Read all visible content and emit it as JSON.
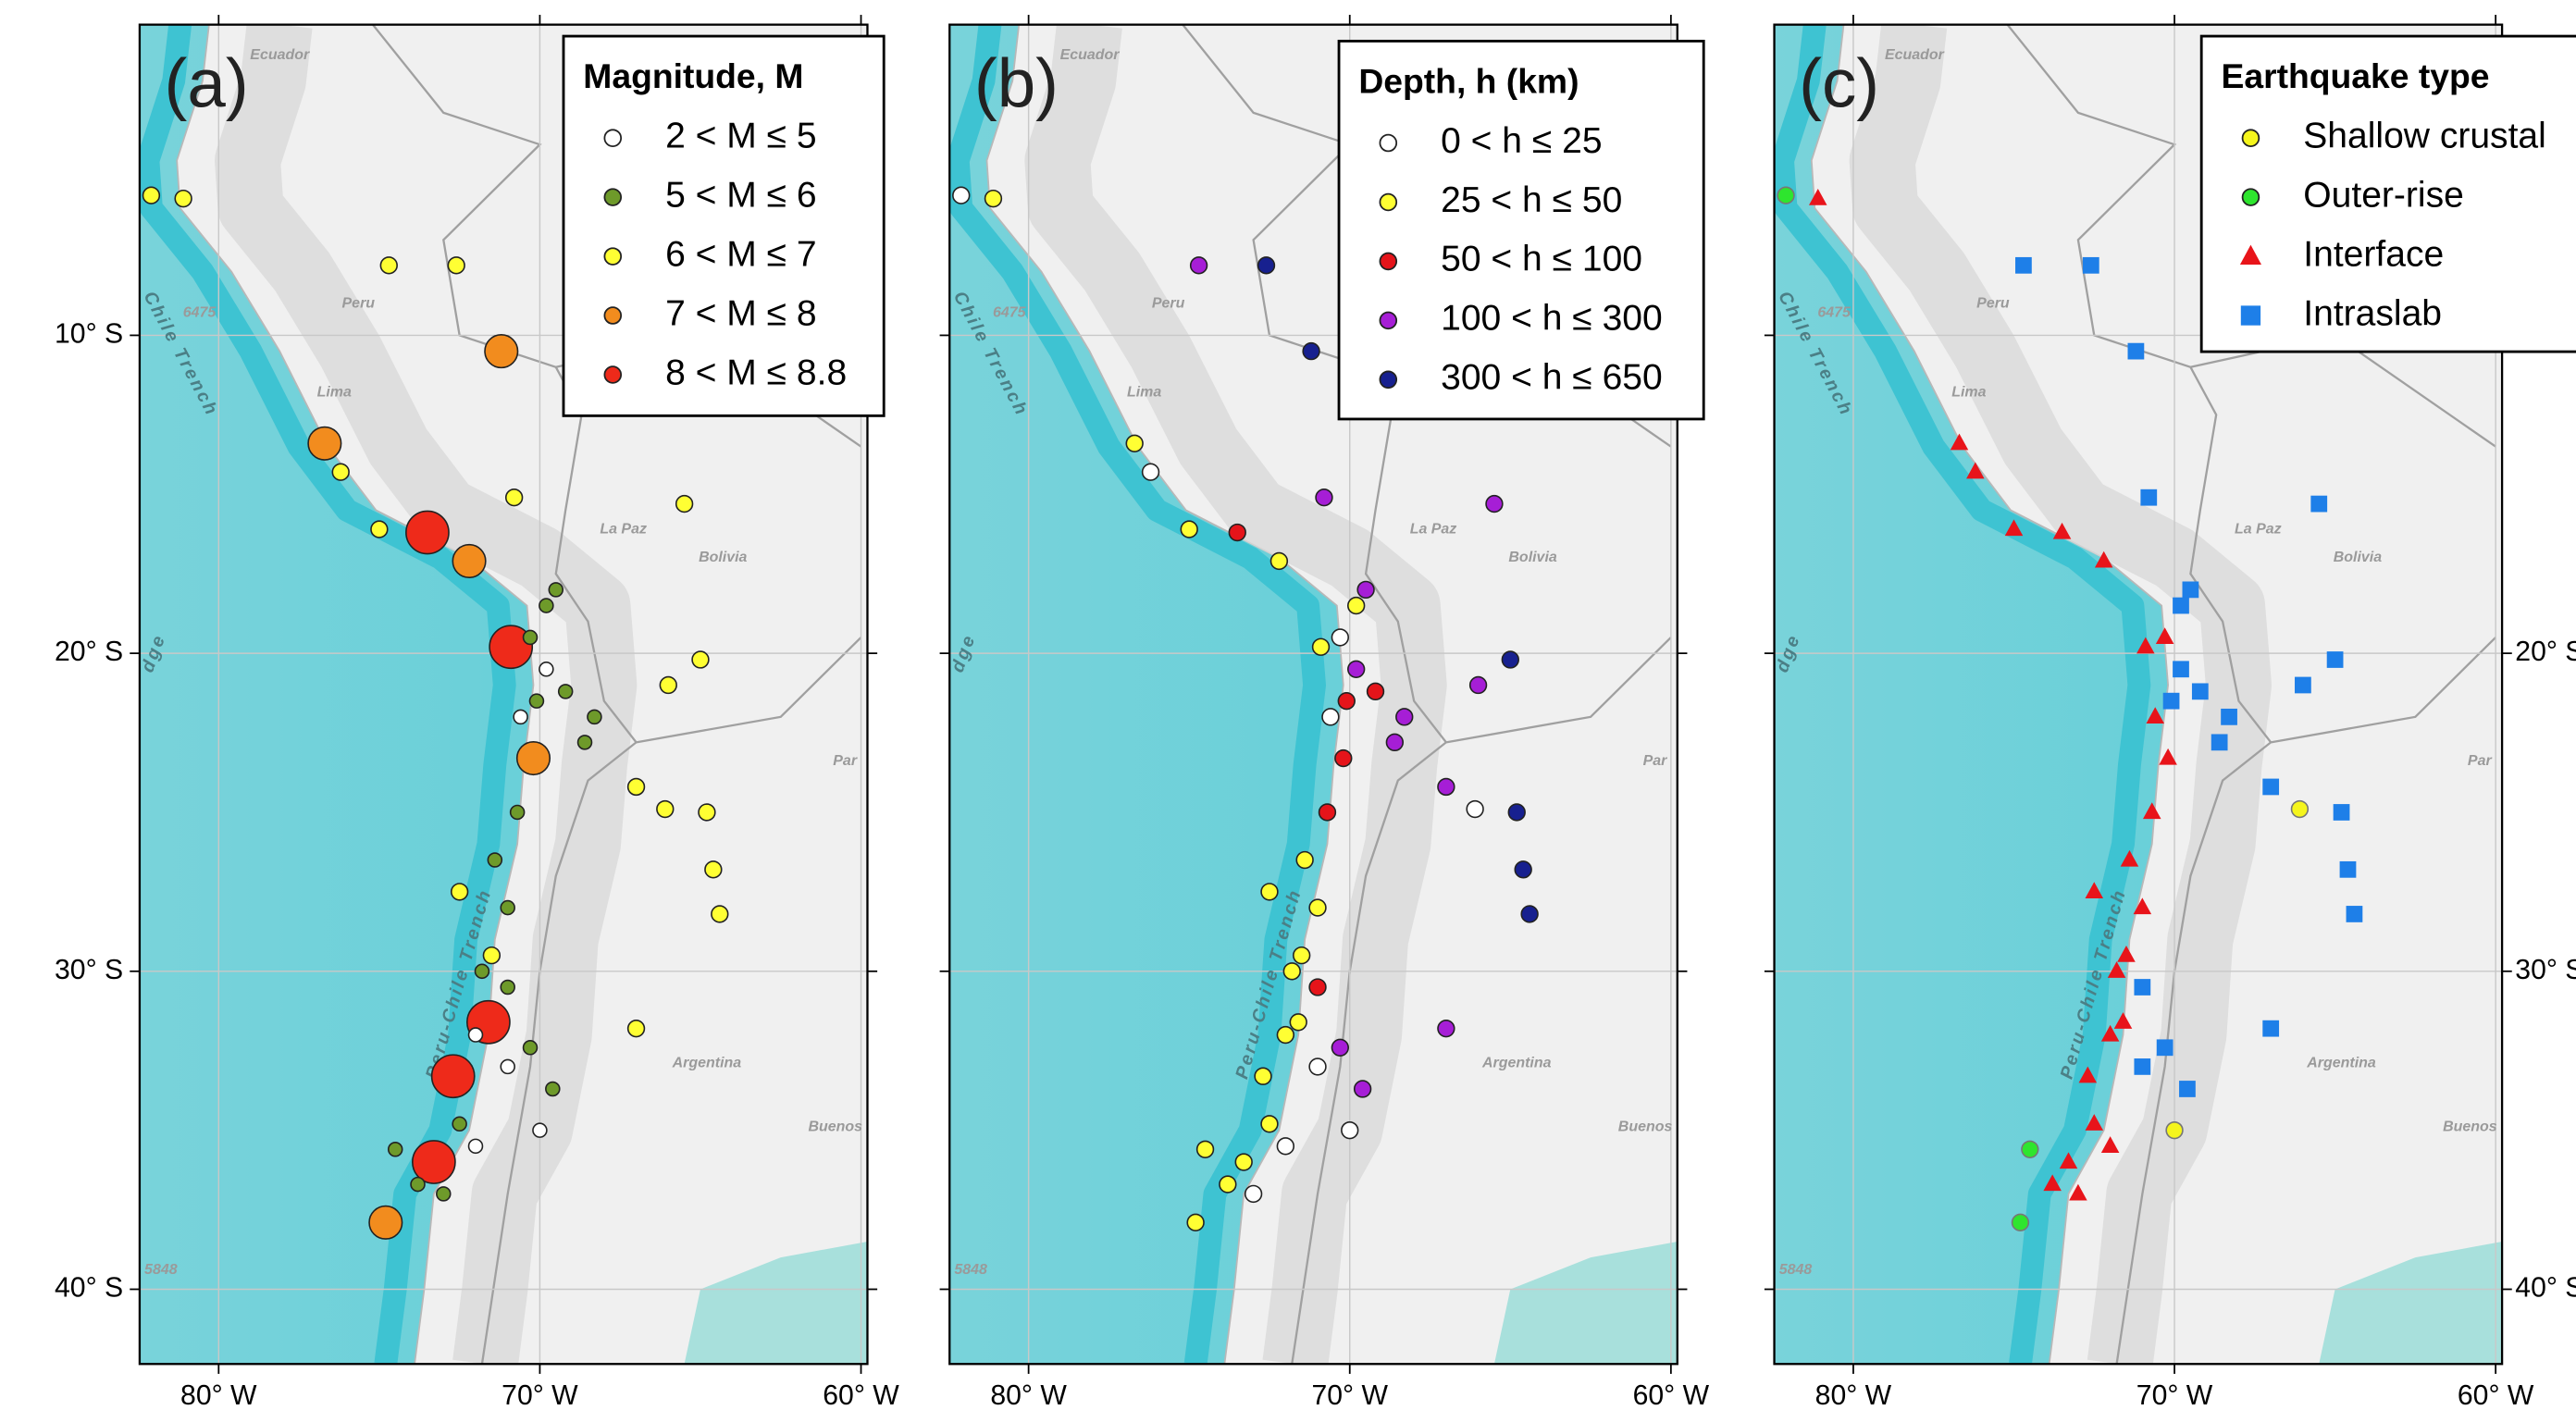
{
  "xlim": [
    -82.46,
    -59.8
  ],
  "ylim": [
    -42.35,
    -0.23
  ],
  "xticks": [
    {
      "value": -80,
      "label": "80° W"
    },
    {
      "value": -70,
      "label": "70° W"
    },
    {
      "value": -60,
      "label": "60° W"
    }
  ],
  "yticks": [
    {
      "value": -10,
      "label": "10° S"
    },
    {
      "value": -20,
      "label": "20° S"
    },
    {
      "value": -30,
      "label": "30° S"
    },
    {
      "value": -40,
      "label": "40° S"
    }
  ],
  "map_labels": [
    {
      "text": "Ecuador",
      "lon": -78.1,
      "lat": -1.2
    },
    {
      "text": "Peru",
      "lon": -75.65,
      "lat": -9.0
    },
    {
      "text": "Lima",
      "lon": -76.4,
      "lat": -11.8
    },
    {
      "text": "La Paz",
      "lon": -67.4,
      "lat": -16.1
    },
    {
      "text": "Bolivia",
      "lon": -64.3,
      "lat": -17.0
    },
    {
      "text": "Argentina",
      "lon": -64.8,
      "lat": -32.9
    },
    {
      "text": "Buenos",
      "lon": -60.8,
      "lat": -34.9
    },
    {
      "text": "Par",
      "lon": -60.5,
      "lat": -23.4
    },
    {
      "text": "6475",
      "lon": -80.6,
      "lat": -9.3
    },
    {
      "text": "5848",
      "lon": -81.8,
      "lat": -39.4
    },
    {
      "text": "Chile Trench",
      "lon": -81.2,
      "lat": -10.6
    },
    {
      "text": "Peru-Chile Trench",
      "lon": -72.5,
      "lat": -30.4
    },
    {
      "text": "dge",
      "lon": -82.0,
      "lat": -20.0
    }
  ],
  "events": {
    "lon": [
      -82.1,
      -81.1,
      -74.7,
      -72.6,
      -71.2,
      -76.7,
      -76.2,
      -73.5,
      -75.0,
      -72.2,
      -65.5,
      -70.9,
      -70.3,
      -69.5,
      -69.8,
      -69.2,
      -70.2,
      -70.6,
      -68.3,
      -67.0,
      -66.0,
      -65.0,
      -64.8,
      -64.6,
      -64.4,
      -66.1,
      -71.4,
      -71.0,
      -71.5,
      -71.6,
      -71.0,
      -70.3,
      -72.7,
      -71.0,
      -69.6,
      -73.3,
      -74.8,
      -73.0,
      -73.8,
      -72.5,
      -74.5,
      -70.7,
      -72.0,
      -70.0,
      -67.0,
      -70.8,
      -69.8,
      -70.1,
      -68.6,
      -72.5,
      -71.8,
      -72.0
    ],
    "lat": [
      -5.6,
      -5.7,
      -7.8,
      -7.8,
      -10.5,
      -13.4,
      -14.3,
      -16.2,
      -16.1,
      -17.1,
      -15.3,
      -19.8,
      -19.5,
      -18.0,
      -20.5,
      -21.2,
      -23.3,
      -22.0,
      -22.0,
      -24.2,
      -21.0,
      -20.2,
      -25.0,
      -26.8,
      -28.2,
      -24.9,
      -26.5,
      -28.0,
      -29.5,
      -31.6,
      -30.5,
      -32.4,
      -33.3,
      -33.0,
      -33.7,
      -36.0,
      -37.9,
      -37.0,
      -36.7,
      -34.8,
      -35.6,
      -25.0,
      -35.5,
      -35.0,
      -31.8,
      -15.1,
      -18.5,
      -21.5,
      -22.8,
      -27.5,
      -30.0,
      -32.0
    ],
    "magnitude_class": [
      2,
      2,
      2,
      2,
      3,
      3,
      2,
      4,
      2,
      3,
      2,
      4,
      1,
      1,
      0,
      1,
      3,
      0,
      1,
      2,
      2,
      2,
      2,
      2,
      2,
      2,
      1,
      1,
      2,
      4,
      1,
      1,
      4,
      0,
      1,
      4,
      3,
      1,
      1,
      1,
      1,
      1,
      0,
      0,
      2,
      2,
      1,
      1,
      1,
      2,
      1,
      0
    ],
    "depth_class": [
      0,
      1,
      3,
      4,
      4,
      1,
      0,
      2,
      1,
      1,
      3,
      1,
      0,
      3,
      3,
      2,
      2,
      0,
      3,
      3,
      3,
      4,
      4,
      4,
      4,
      0,
      1,
      1,
      1,
      1,
      2,
      3,
      1,
      0,
      3,
      1,
      1,
      0,
      1,
      1,
      1,
      2,
      0,
      0,
      3,
      3,
      1,
      2,
      3,
      1,
      1,
      1
    ],
    "type_class": [
      1,
      2,
      3,
      3,
      3,
      2,
      2,
      2,
      2,
      2,
      3,
      2,
      2,
      3,
      3,
      3,
      2,
      2,
      3,
      3,
      3,
      3,
      3,
      3,
      3,
      0,
      2,
      2,
      2,
      2,
      3,
      3,
      2,
      3,
      3,
      2,
      1,
      2,
      2,
      2,
      1,
      2,
      2,
      0,
      3,
      3,
      3,
      3,
      3,
      2,
      2,
      2
    ]
  },
  "panels": [
    {
      "label": "(a)",
      "legend_title": "Magnitude, M",
      "classify_by": "magnitude_class",
      "legend": [
        {
          "label": "2 < M ≤ 5",
          "color": "#ffffff",
          "marker": "circle"
        },
        {
          "label": "5 < M ≤ 6",
          "color": "#6e9a2a",
          "marker": "circle"
        },
        {
          "label": "6 < M ≤ 7",
          "color": "#ffff33",
          "marker": "circle"
        },
        {
          "label": "7 < M ≤ 8",
          "color": "#f28c1e",
          "marker": "circle"
        },
        {
          "label": "8 < M ≤ 8.8",
          "color": "#ee2a1a",
          "marker": "circle"
        }
      ]
    },
    {
      "label": "(b)",
      "legend_title": "Depth, h (km)",
      "classify_by": "depth_class",
      "legend": [
        {
          "label": "0 < h ≤ 25",
          "color": "#ffffff",
          "marker": "circle"
        },
        {
          "label": "25 < h ≤ 50",
          "color": "#ffff33",
          "marker": "circle"
        },
        {
          "label": "50 < h ≤ 100",
          "color": "#e5141a",
          "marker": "circle"
        },
        {
          "label": "100 < h ≤ 300",
          "color": "#a61ed6",
          "marker": "circle"
        },
        {
          "label": "300 < h ≤ 650",
          "color": "#17208f",
          "marker": "circle"
        }
      ]
    },
    {
      "label": "(c)",
      "legend_title": "Earthquake type",
      "classify_by": "type_class",
      "legend": [
        {
          "label": "Shallow crustal",
          "color": "#f5f51c",
          "marker": "circle"
        },
        {
          "label": "Outer-rise",
          "color": "#2ee52e",
          "marker": "circle"
        },
        {
          "label": "Interface",
          "color": "#e8141a",
          "marker": "triangle"
        },
        {
          "label": "Intraslab",
          "color": "#1e7fe8",
          "marker": "square"
        }
      ]
    }
  ]
}
